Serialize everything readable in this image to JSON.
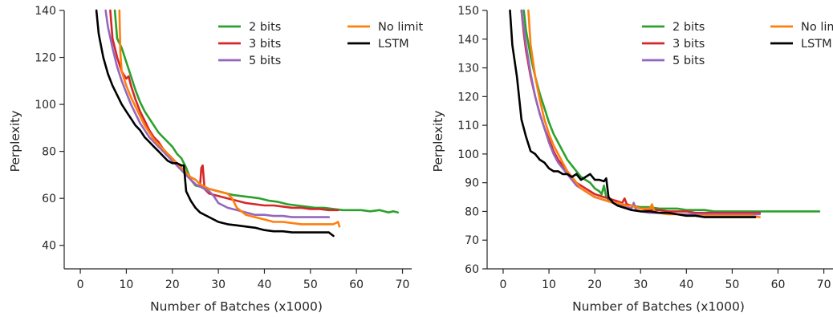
{
  "colors": {
    "2 bits": "#2ca02c",
    "3 bits": "#d62728",
    "5 bits": "#9467bd",
    "No limit": "#ff7f0e",
    "LSTM": "#000000",
    "axis": "#262626"
  },
  "chart_data": [
    {
      "type": "line",
      "title": "",
      "xlabel": "Number of Batches (x1000)",
      "ylabel": "Perplexity",
      "xlim": [
        -3.5,
        72
      ],
      "ylim": [
        30,
        140
      ],
      "xticks": [
        0,
        10,
        20,
        30,
        40,
        50,
        60,
        70
      ],
      "xtick_labels": [
        "0",
        "10",
        "20",
        "30",
        "40",
        "50",
        "60",
        "70"
      ],
      "yticks": [
        40,
        60,
        80,
        100,
        120,
        140
      ],
      "ytick_labels": [
        "40",
        "60",
        "80",
        "100",
        "120",
        "140"
      ],
      "grid": false,
      "legend": {
        "placement": "top-right",
        "columns": 2
      },
      "series": [
        {
          "name": "2 bits",
          "x": [
            7.5,
            8,
            9,
            10,
            11,
            12,
            13,
            14,
            15,
            16,
            17,
            18,
            19,
            20,
            21,
            22,
            23,
            24,
            25,
            27,
            29,
            31,
            33,
            35,
            37,
            39,
            41,
            43,
            45,
            47,
            49,
            51,
            53,
            55,
            57,
            59,
            61,
            63,
            65,
            67,
            68,
            69
          ],
          "y": [
            140,
            128,
            124,
            118,
            112,
            106,
            101,
            97,
            94,
            91,
            88,
            86,
            84,
            82,
            79,
            77,
            73,
            68,
            65.5,
            64.5,
            63.5,
            62.5,
            61.5,
            61,
            60.5,
            60,
            59,
            58.5,
            57.5,
            57,
            56.5,
            56,
            56,
            55.5,
            55,
            55,
            55,
            54.5,
            55,
            54,
            54.5,
            54
          ]
        },
        {
          "name": "3 bits",
          "x": [
            6.5,
            7,
            8,
            9,
            10,
            10.5,
            11,
            12,
            13,
            14,
            15,
            16,
            17,
            18,
            19,
            20,
            21,
            22,
            23,
            24,
            25,
            26,
            26.3,
            26.6,
            27,
            28,
            30,
            32,
            34,
            36,
            38,
            40,
            42,
            44,
            46,
            48,
            50,
            52,
            54,
            55,
            56
          ],
          "y": [
            140,
            128,
            120,
            114,
            111,
            112,
            108,
            102,
            97,
            93,
            89,
            86,
            84,
            81,
            79,
            77,
            74,
            72,
            70,
            68,
            66,
            65,
            73,
            74,
            64,
            62,
            61,
            60,
            59,
            58,
            57.5,
            57,
            57,
            56.5,
            56,
            56,
            55.5,
            55.5,
            55,
            55,
            55
          ]
        },
        {
          "name": "5 bits",
          "x": [
            5.5,
            6,
            7,
            8,
            9,
            10,
            11,
            12,
            13,
            14,
            15,
            16,
            17,
            18,
            19,
            20,
            21,
            22,
            23,
            24,
            25,
            26,
            27,
            28,
            29,
            30,
            32,
            34,
            36,
            38,
            40,
            42,
            44,
            46,
            48,
            50,
            52,
            54
          ],
          "y": [
            140,
            133,
            124,
            116,
            110,
            105,
            100,
            96,
            92,
            89,
            86,
            84,
            82,
            80,
            78,
            76,
            74,
            72,
            70,
            68,
            66,
            65,
            64,
            63,
            61,
            58,
            56,
            55,
            54,
            53,
            53,
            52.5,
            52.5,
            52,
            52,
            52,
            52,
            52
          ]
        },
        {
          "name": "No limit",
          "x": [
            8.5,
            8.7,
            9,
            10,
            11,
            12,
            13,
            14,
            15,
            16,
            17,
            18,
            19,
            20,
            21,
            22,
            23,
            24,
            25,
            26,
            27,
            28,
            29,
            30,
            31,
            32,
            33,
            34,
            35,
            36,
            38,
            40,
            42,
            44,
            46,
            48,
            50,
            52,
            54,
            55,
            56,
            56.3
          ],
          "y": [
            140,
            122,
            114,
            108,
            103,
            99,
            95,
            91,
            88,
            85,
            83,
            81,
            79,
            77,
            75,
            73,
            71,
            69,
            68,
            66,
            65,
            64,
            63.5,
            63,
            62.5,
            62,
            60,
            56,
            54.5,
            53,
            52,
            51,
            50,
            50,
            49.5,
            49,
            49,
            49,
            49,
            49,
            50,
            48
          ]
        },
        {
          "name": "LSTM",
          "x": [
            3.5,
            4,
            5,
            6,
            7,
            8,
            9,
            10,
            11,
            12,
            13,
            14,
            15,
            16,
            17,
            18,
            19,
            20,
            21,
            22,
            22.5,
            23,
            24,
            25,
            26,
            28,
            30,
            32,
            34,
            36,
            38,
            40,
            42,
            44,
            46,
            48,
            50,
            52,
            53,
            54,
            55
          ],
          "y": [
            140,
            130,
            120,
            113,
            108,
            104,
            100,
            97,
            94,
            91,
            89,
            86,
            84,
            82,
            80,
            78,
            76,
            75,
            75,
            74,
            74,
            63,
            59,
            56,
            54,
            52,
            50,
            49,
            48.5,
            48,
            47.5,
            46.5,
            46,
            46,
            45.5,
            45.5,
            45.5,
            45.5,
            45.5,
            45.5,
            44
          ]
        }
      ]
    },
    {
      "type": "line",
      "title": "",
      "xlabel": "Number of Batches (x1000)",
      "ylabel": "Perplexity",
      "xlim": [
        -3.5,
        72
      ],
      "ylim": [
        60,
        150
      ],
      "xticks": [
        0,
        10,
        20,
        30,
        40,
        50,
        60,
        70
      ],
      "xtick_labels": [
        "0",
        "10",
        "20",
        "30",
        "40",
        "50",
        "60",
        "70"
      ],
      "yticks": [
        60,
        70,
        80,
        90,
        100,
        110,
        120,
        130,
        140,
        150
      ],
      "ytick_labels": [
        "60",
        "70",
        "80",
        "90",
        "100",
        "110",
        "120",
        "130",
        "140",
        "150"
      ],
      "grid": false,
      "legend": {
        "placement": "top-right",
        "columns": 2
      },
      "series": [
        {
          "name": "2 bits",
          "x": [
            4.5,
            5,
            6,
            7,
            8,
            9,
            10,
            11,
            12,
            13,
            14,
            15,
            16,
            17,
            18,
            19,
            20,
            21,
            21.5,
            22,
            22.5,
            23,
            24,
            26,
            28,
            30,
            32,
            34,
            36,
            38,
            40,
            42,
            44,
            46,
            48,
            50,
            52,
            54,
            56,
            58,
            60,
            62,
            64,
            66,
            68,
            69
          ],
          "y": [
            150,
            143,
            134,
            127,
            121,
            116,
            111,
            107,
            104,
            101,
            98,
            96,
            94,
            92,
            91,
            90,
            88,
            87,
            86,
            89,
            85,
            84,
            83,
            82.5,
            82,
            81.5,
            81.5,
            81,
            81,
            81,
            80.5,
            80.5,
            80.5,
            80,
            80,
            80,
            80,
            80,
            80,
            80,
            80,
            80,
            80,
            80,
            80,
            80
          ]
        },
        {
          "name": "3 bits",
          "x": [
            4,
            4.5,
            5,
            6,
            7,
            8,
            9,
            10,
            11,
            12,
            13,
            14,
            15,
            16,
            17,
            18,
            19,
            20,
            21,
            22,
            23,
            24,
            25,
            26,
            26.5,
            27,
            28,
            29,
            30,
            32,
            34,
            36,
            38,
            40,
            42,
            44,
            46,
            48,
            50,
            52,
            54,
            56
          ],
          "y": [
            150,
            142,
            136,
            127,
            120,
            114,
            109,
            105,
            101,
            98,
            96,
            94,
            92,
            90,
            89,
            88,
            87,
            86,
            85.5,
            85,
            84.5,
            84,
            83.5,
            83,
            84.5,
            82.5,
            82,
            81.5,
            81,
            80.5,
            80.5,
            80,
            80,
            80,
            79.5,
            79.5,
            79.5,
            79.5,
            79.5,
            79.5,
            79.5,
            79.5
          ]
        },
        {
          "name": "5 bits",
          "x": [
            4,
            5,
            6,
            7,
            8,
            9,
            10,
            11,
            12,
            13,
            14,
            15,
            16,
            17,
            18,
            19,
            20,
            21,
            22,
            23,
            24,
            25,
            26,
            27,
            28,
            28.5,
            29,
            30,
            32,
            34,
            36,
            38,
            40,
            42,
            44,
            46,
            48,
            50,
            52,
            54,
            56
          ],
          "y": [
            150,
            138,
            128,
            120,
            114,
            109,
            104,
            100,
            97,
            95,
            93,
            91,
            89,
            88,
            87,
            86,
            85,
            84.5,
            84,
            83.5,
            83,
            82.5,
            82,
            81.5,
            81,
            83,
            80.5,
            80,
            79.5,
            79.5,
            79.5,
            79,
            79,
            79,
            79,
            79,
            79,
            79,
            79,
            79,
            79
          ]
        },
        {
          "name": "No limit",
          "x": [
            5.5,
            6,
            7,
            8,
            9,
            10,
            11,
            12,
            13,
            14,
            15,
            16,
            17,
            18,
            19,
            20,
            21,
            22,
            23,
            24,
            25,
            26,
            27,
            28,
            29,
            30,
            31,
            32,
            32.5,
            33,
            34,
            36,
            38,
            40,
            42,
            44,
            46,
            48,
            50,
            52,
            54,
            56
          ],
          "y": [
            150,
            138,
            127,
            119,
            112,
            107,
            103,
            100,
            97,
            94,
            92,
            90,
            88,
            87,
            86,
            85,
            84.5,
            84,
            83.5,
            83,
            83,
            82.5,
            82,
            82,
            81.5,
            81,
            81,
            81,
            82.5,
            80,
            79.5,
            79,
            79,
            78.5,
            78.5,
            78.5,
            78.5,
            78.5,
            78.5,
            78.5,
            78.5,
            78
          ]
        },
        {
          "name": "LSTM",
          "x": [
            1.5,
            2,
            3,
            4,
            5,
            6,
            7,
            8,
            9,
            10,
            11,
            12,
            13,
            14,
            15,
            16,
            17,
            18,
            19,
            20,
            21,
            22,
            22.5,
            23,
            24,
            25,
            26,
            27,
            28,
            30,
            32,
            34,
            36,
            38,
            40,
            42,
            44,
            46,
            48,
            50,
            52,
            54,
            55
          ],
          "y": [
            150,
            138,
            127,
            112,
            106,
            101,
            100,
            98,
            97,
            95,
            94,
            94,
            93,
            93,
            92,
            93,
            91,
            92,
            93,
            91,
            91,
            90.5,
            91.5,
            85,
            83,
            82,
            81.5,
            81,
            80.5,
            80,
            80,
            79.5,
            79.5,
            79,
            78.5,
            78.5,
            78,
            78,
            78,
            78,
            78,
            78,
            78
          ]
        }
      ]
    }
  ]
}
